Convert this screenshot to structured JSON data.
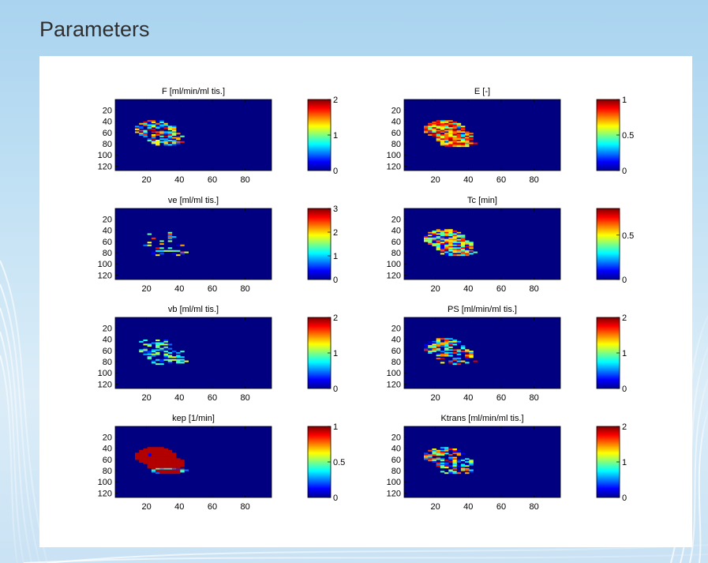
{
  "slide": {
    "title": "Parameters"
  },
  "chart_data": [
    {
      "type": "heatmap",
      "title": "F [ml/min/ml tis.]",
      "xticks": [
        20,
        40,
        60,
        80
      ],
      "yticks": [
        20,
        40,
        60,
        80,
        100,
        120
      ],
      "xlim": [
        1,
        96
      ],
      "ylim": [
        1,
        128
      ],
      "colorbar": {
        "range": [
          0,
          2
        ],
        "ticks": [
          0,
          1,
          2
        ]
      },
      "map_style": "speckle"
    },
    {
      "type": "heatmap",
      "title": "E [-]",
      "xticks": [
        20,
        40,
        60,
        80
      ],
      "yticks": [
        20,
        40,
        60,
        80,
        100,
        120
      ],
      "xlim": [
        1,
        96
      ],
      "ylim": [
        1,
        128
      ],
      "colorbar": {
        "range": [
          0,
          1
        ],
        "ticks": [
          0,
          0.5,
          1
        ]
      },
      "map_style": "dense"
    },
    {
      "type": "heatmap",
      "title": "ve [ml/ml tis.]",
      "xticks": [
        20,
        40,
        60,
        80
      ],
      "yticks": [
        20,
        40,
        60,
        80,
        100,
        120
      ],
      "xlim": [
        1,
        96
      ],
      "ylim": [
        1,
        128
      ],
      "colorbar": {
        "range": [
          0,
          3
        ],
        "ticks": [
          0,
          1,
          2,
          3
        ]
      },
      "map_style": "sparse"
    },
    {
      "type": "heatmap",
      "title": "Tc [min]",
      "xticks": [
        20,
        40,
        60,
        80
      ],
      "yticks": [
        20,
        40,
        60,
        80,
        100,
        120
      ],
      "xlim": [
        1,
        96
      ],
      "ylim": [
        1,
        128
      ],
      "colorbar": {
        "range": [
          0,
          0.8
        ],
        "ticks": [
          0,
          0.5
        ]
      },
      "map_style": "bright"
    },
    {
      "type": "heatmap",
      "title": "vb [ml/ml tis.]",
      "xticks": [
        20,
        40,
        60,
        80
      ],
      "yticks": [
        20,
        40,
        60,
        80,
        100,
        120
      ],
      "xlim": [
        1,
        96
      ],
      "ylim": [
        1,
        128
      ],
      "colorbar": {
        "range": [
          0,
          2
        ],
        "ticks": [
          0,
          1,
          2
        ]
      },
      "map_style": "faint"
    },
    {
      "type": "heatmap",
      "title": "PS [ml/min/ml tis.]",
      "xticks": [
        20,
        40,
        60,
        80
      ],
      "yticks": [
        20,
        40,
        60,
        80,
        100,
        120
      ],
      "xlim": [
        1,
        96
      ],
      "ylim": [
        1,
        128
      ],
      "colorbar": {
        "range": [
          0,
          2
        ],
        "ticks": [
          0,
          1,
          2
        ]
      },
      "map_style": "speckle"
    },
    {
      "type": "heatmap",
      "title": "kep [1/min]",
      "xticks": [
        20,
        40,
        60,
        80
      ],
      "yticks": [
        20,
        40,
        60,
        80,
        100,
        120
      ],
      "xlim": [
        1,
        96
      ],
      "ylim": [
        1,
        128
      ],
      "colorbar": {
        "range": [
          0,
          1
        ],
        "ticks": [
          0,
          0.5,
          1
        ]
      },
      "map_style": "saturated"
    },
    {
      "type": "heatmap",
      "title": "Ktrans [ml/min/ml tis.]",
      "xticks": [
        20,
        40,
        60,
        80
      ],
      "yticks": [
        20,
        40,
        60,
        80,
        100,
        120
      ],
      "xlim": [
        1,
        96
      ],
      "ylim": [
        1,
        128
      ],
      "colorbar": {
        "range": [
          0,
          2
        ],
        "ticks": [
          0,
          1,
          2
        ]
      },
      "map_style": "speckle"
    }
  ]
}
